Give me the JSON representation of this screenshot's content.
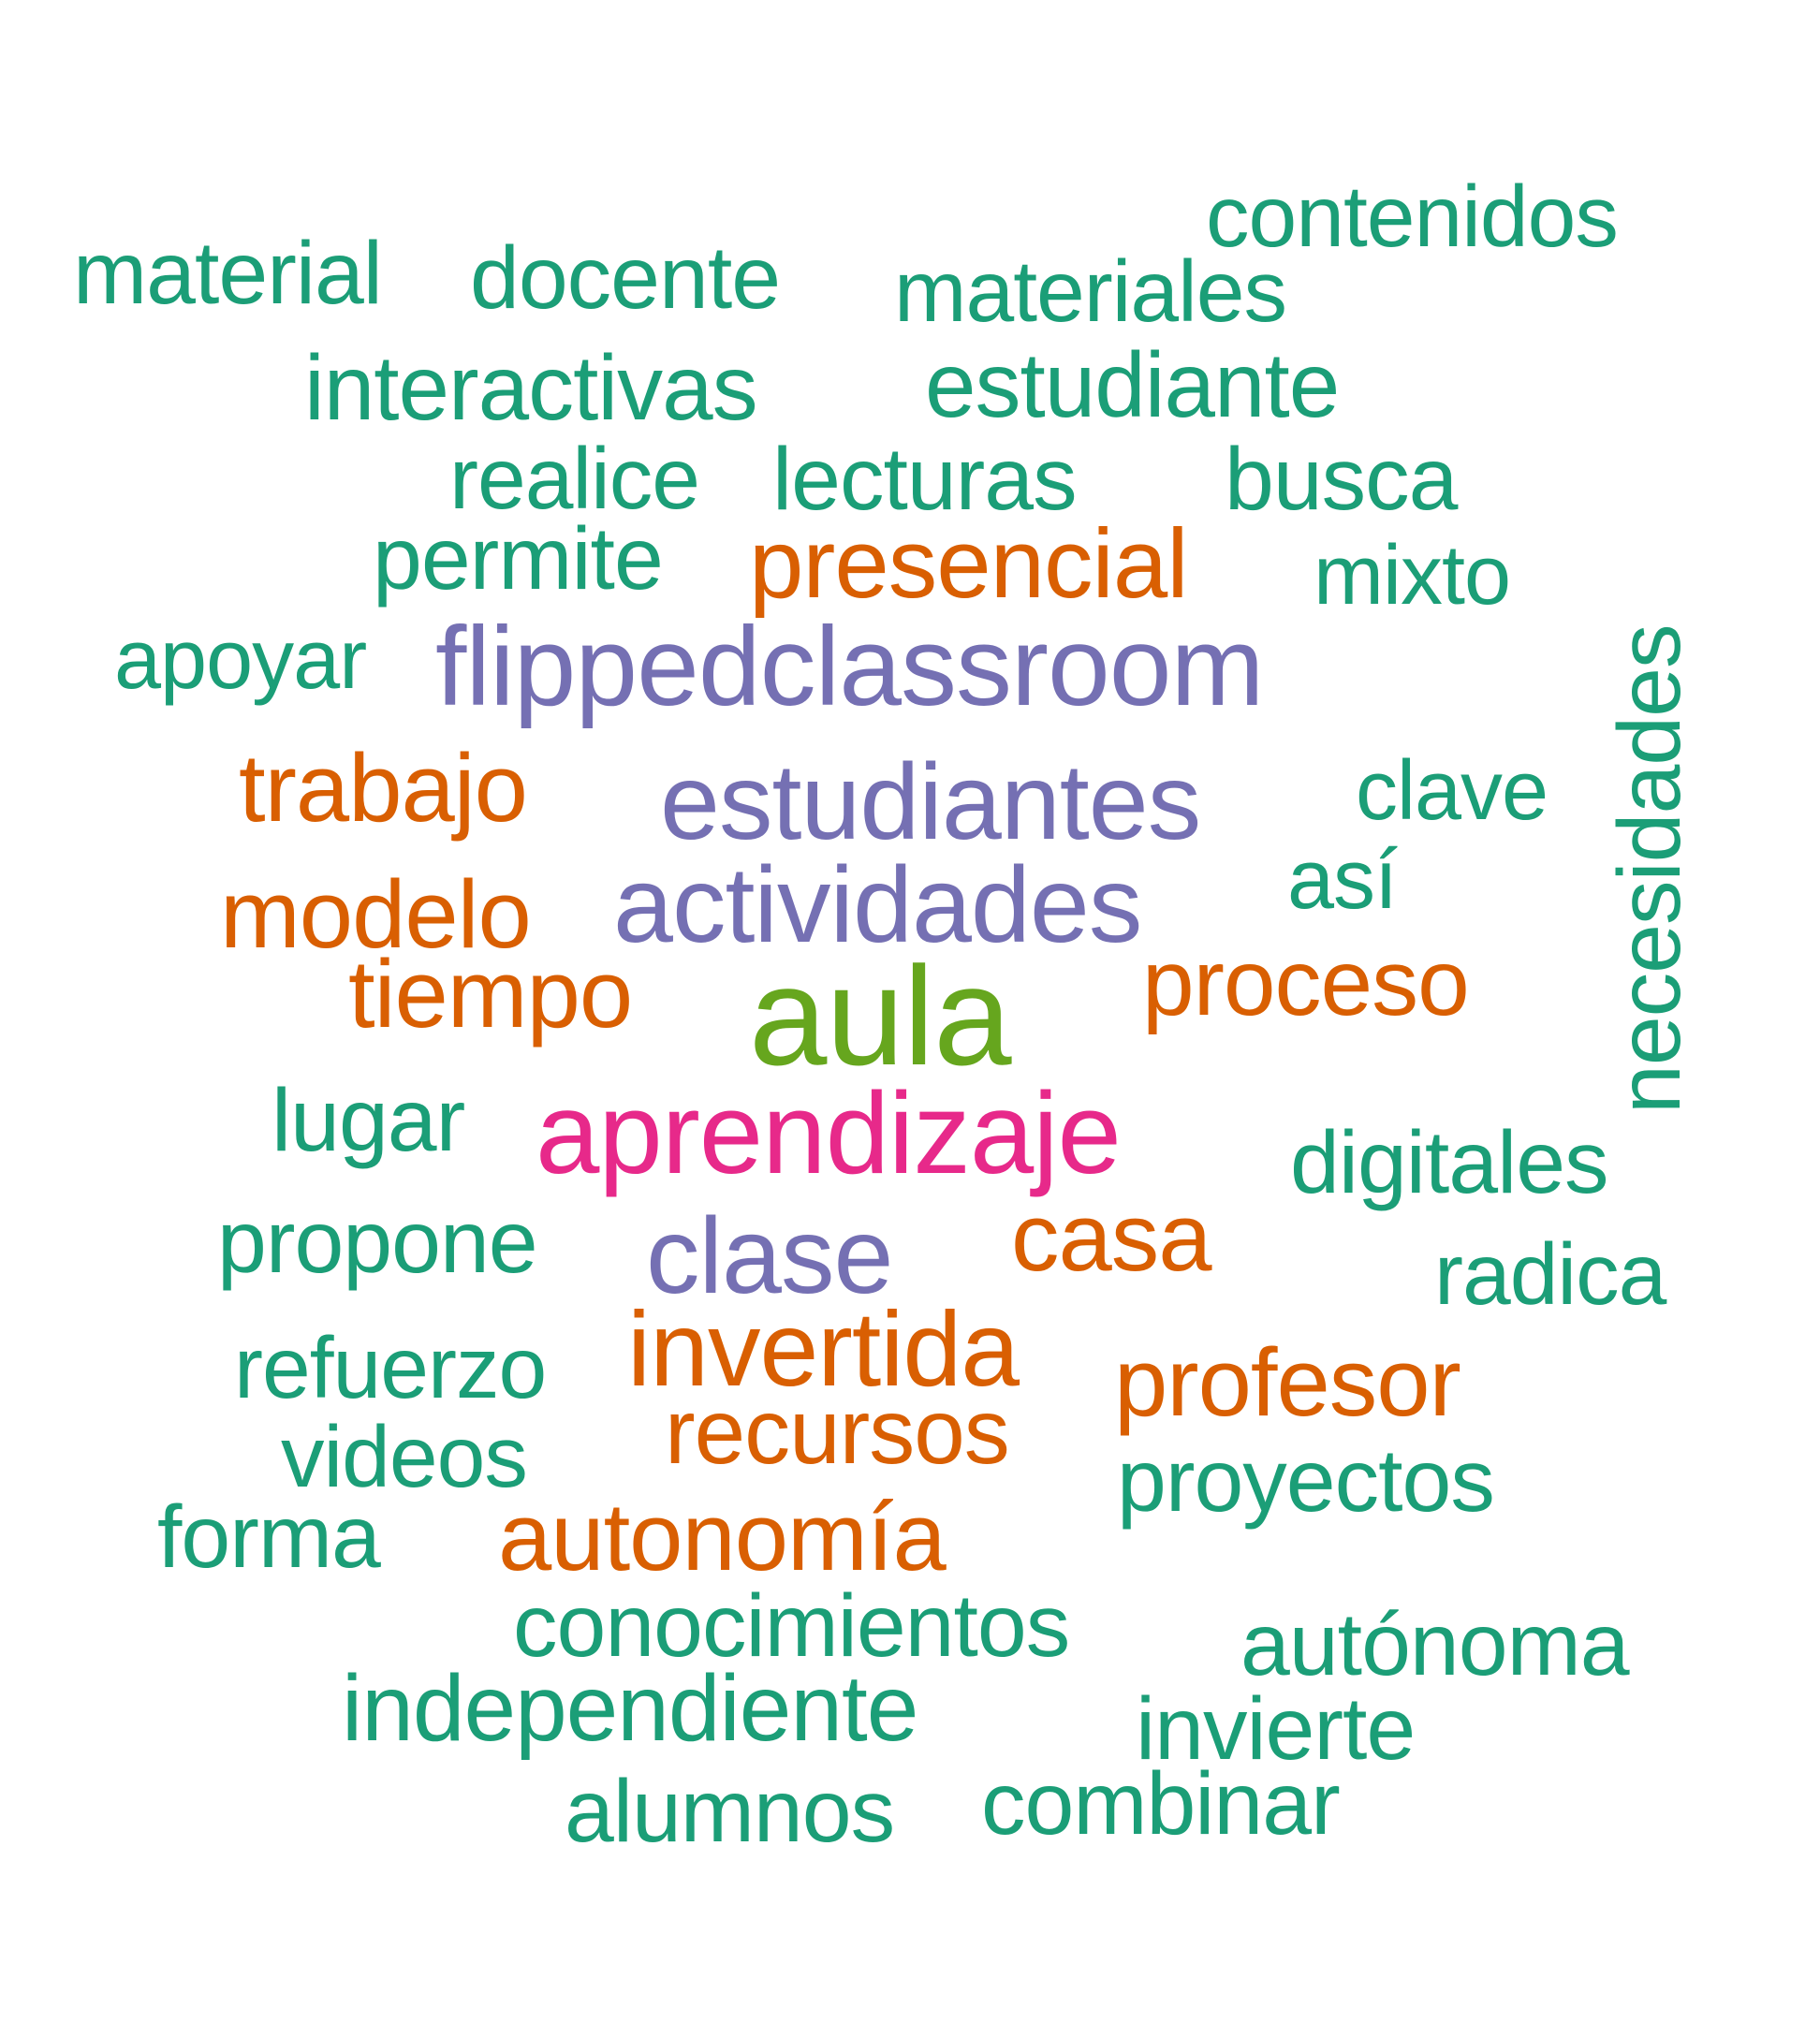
{
  "colors": {
    "teal": "#1b9e77",
    "orange": "#d95f02",
    "purple": "#7570b3",
    "magenta": "#e7298a",
    "green": "#66a61e"
  },
  "words": {
    "aula": "aula",
    "aprendizaje": "aprendizaje",
    "flippedclassroom": "flippedclassroom",
    "estudiantes": "estudiantes",
    "actividades": "actividades",
    "clase": "clase",
    "presencial": "presencial",
    "trabajo": "trabajo",
    "modelo": "modelo",
    "tiempo": "tiempo",
    "proceso": "proceso",
    "casa": "casa",
    "invertida": "invertida",
    "profesor": "profesor",
    "recursos": "recursos",
    "autonomia": "autonomía",
    "contenidos": "contenidos",
    "material": "material",
    "docente": "docente",
    "materiales": "materiales",
    "interactivas": "interactivas",
    "estudiante": "estudiante",
    "realice": "realice",
    "lecturas": "lecturas",
    "busca": "busca",
    "permite": "permite",
    "mixto": "mixto",
    "apoyar": "apoyar",
    "clave": "clave",
    "asi": "así",
    "necesidades": "necesidades",
    "lugar": "lugar",
    "digitales": "digitales",
    "propone": "propone",
    "radica": "radica",
    "refuerzo": "refuerzo",
    "videos": "videos",
    "proyectos": "proyectos",
    "forma": "forma",
    "conocimientos": "conocimientos",
    "autonoma": "autónoma",
    "independiente": "independiente",
    "invierte": "invierte",
    "alumnos": "alumnos",
    "combinar": "combinar"
  }
}
